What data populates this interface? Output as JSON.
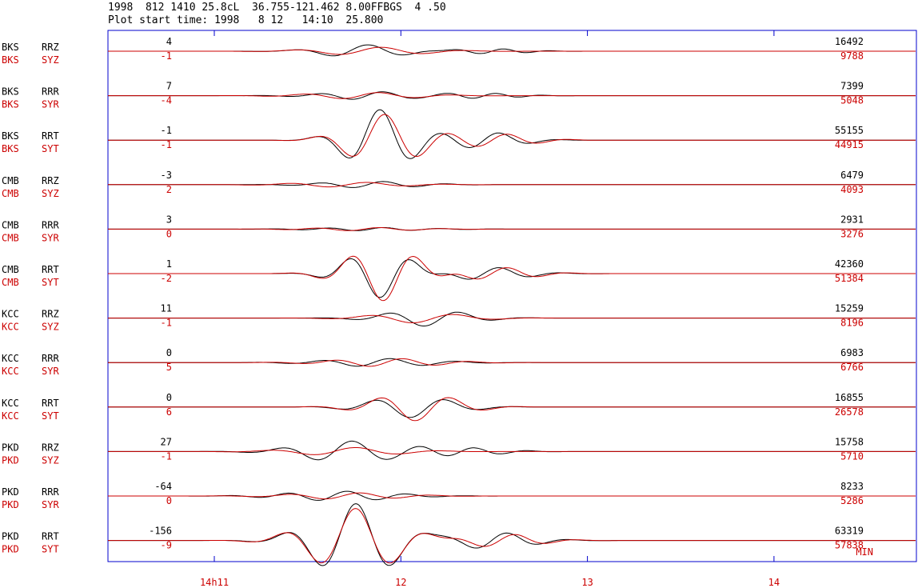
{
  "header": {
    "line1": "1998  812 1410 25.8cL  36.755-121.462 8.00FFBGS  4 .50",
    "line2": "Plot start time: 1998   8 12   14:10  25.800"
  },
  "colors": {
    "observed": "#000000",
    "synthetic": "#cc0000",
    "frame": "#0000cc"
  },
  "chart_data": {
    "type": "line",
    "x_unit_label": "MIN",
    "x_ticks": [
      {
        "label": "14h11",
        "minute": 11
      },
      {
        "label": "12",
        "minute": 12
      },
      {
        "label": "13",
        "minute": 13
      },
      {
        "label": "14",
        "minute": 14
      }
    ],
    "traces": [
      {
        "station": "BKS",
        "obs_comp": "RRZ",
        "syn_comp": "SYZ",
        "obs_shift": "4",
        "syn_shift": "-1",
        "obs_amp": "16492",
        "syn_amp": "9788"
      },
      {
        "station": "BKS",
        "obs_comp": "RRR",
        "syn_comp": "SYR",
        "obs_shift": "7",
        "syn_shift": "-4",
        "obs_amp": "7399",
        "syn_amp": "5048"
      },
      {
        "station": "BKS",
        "obs_comp": "RRT",
        "syn_comp": "SYT",
        "obs_shift": "-1",
        "syn_shift": "-1",
        "obs_amp": "55155",
        "syn_amp": "44915"
      },
      {
        "station": "CMB",
        "obs_comp": "RRZ",
        "syn_comp": "SYZ",
        "obs_shift": "-3",
        "syn_shift": "2",
        "obs_amp": "6479",
        "syn_amp": "4093"
      },
      {
        "station": "CMB",
        "obs_comp": "RRR",
        "syn_comp": "SYR",
        "obs_shift": "3",
        "syn_shift": "0",
        "obs_amp": "2931",
        "syn_amp": "3276"
      },
      {
        "station": "CMB",
        "obs_comp": "RRT",
        "syn_comp": "SYT",
        "obs_shift": "1",
        "syn_shift": "-2",
        "obs_amp": "42360",
        "syn_amp": "51384"
      },
      {
        "station": "KCC",
        "obs_comp": "RRZ",
        "syn_comp": "SYZ",
        "obs_shift": "11",
        "syn_shift": "-1",
        "obs_amp": "15259",
        "syn_amp": "8196"
      },
      {
        "station": "KCC",
        "obs_comp": "RRR",
        "syn_comp": "SYR",
        "obs_shift": "0",
        "syn_shift": "5",
        "obs_amp": "6983",
        "syn_amp": "6766"
      },
      {
        "station": "KCC",
        "obs_comp": "RRT",
        "syn_comp": "SYT",
        "obs_shift": "0",
        "syn_shift": "6",
        "obs_amp": "16855",
        "syn_amp": "26578"
      },
      {
        "station": "PKD",
        "obs_comp": "RRZ",
        "syn_comp": "SYZ",
        "obs_shift": "27",
        "syn_shift": "-1",
        "obs_amp": "15758",
        "syn_amp": "5710"
      },
      {
        "station": "PKD",
        "obs_comp": "RRR",
        "syn_comp": "SYR",
        "obs_shift": "-64",
        "syn_shift": "0",
        "obs_amp": "8233",
        "syn_amp": "5286"
      },
      {
        "station": "PKD",
        "obs_comp": "RRT",
        "syn_comp": "SYT",
        "obs_shift": "-156",
        "syn_shift": "-9",
        "obs_amp": "63319",
        "syn_amp": "57838"
      }
    ]
  }
}
